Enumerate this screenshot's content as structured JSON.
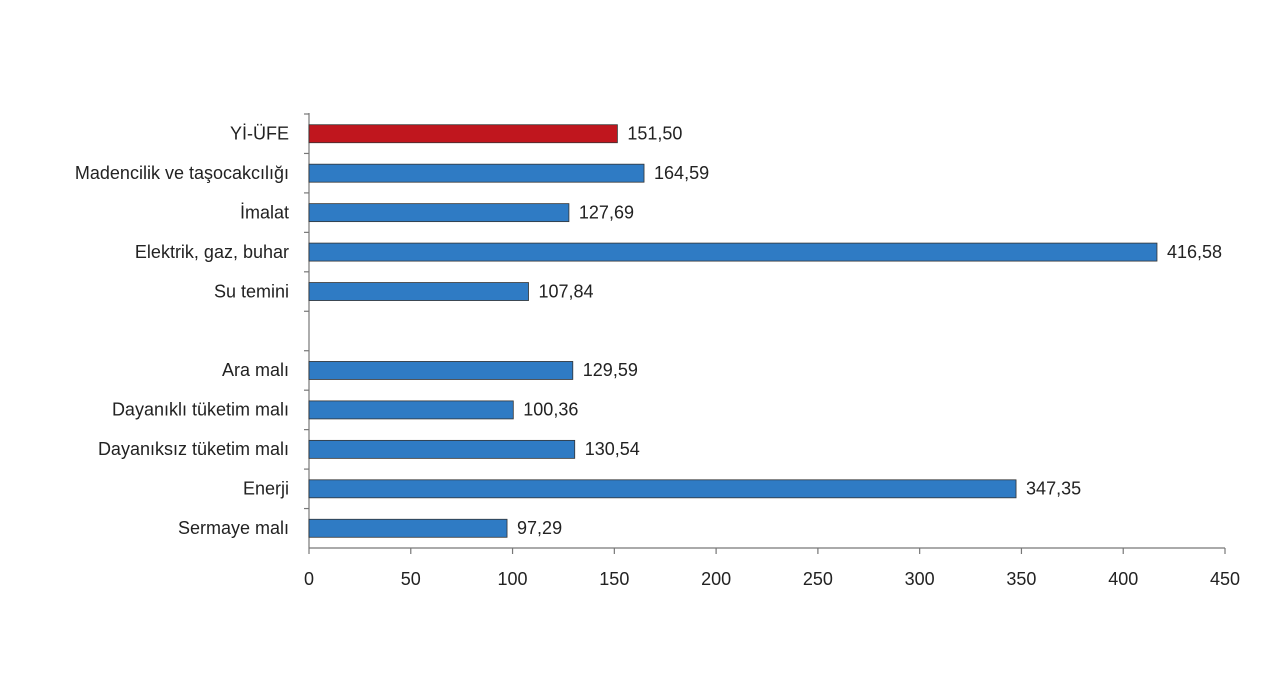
{
  "chart_data": {
    "type": "hbar",
    "categories": [
      "Yİ-ÜFE",
      "Madencilik ve taşocakcılığı",
      "İmalat",
      "Elektrik, gaz, buhar",
      "Su temini",
      null,
      "Ara malı",
      "Dayanıklı tüketim malı",
      "Dayanıksız tüketim malı",
      "Enerji",
      "Sermaye malı"
    ],
    "values": [
      151.5,
      164.59,
      127.69,
      416.58,
      107.84,
      null,
      129.59,
      100.36,
      130.54,
      347.35,
      97.29
    ],
    "value_labels": [
      "151,50",
      "164,59",
      "127,69",
      "416,58",
      "107,84",
      null,
      "129,59",
      "100,36",
      "130,54",
      "347,35",
      "97,29"
    ],
    "colors": [
      "#c0161e",
      "#2f7bc4",
      "#2f7bc4",
      "#2f7bc4",
      "#2f7bc4",
      null,
      "#2f7bc4",
      "#2f7bc4",
      "#2f7bc4",
      "#2f7bc4",
      "#2f7bc4"
    ],
    "xlim": [
      0,
      450
    ],
    "xticks": [
      0,
      50,
      100,
      150,
      200,
      250,
      300,
      350,
      400,
      450
    ],
    "grid": false
  }
}
